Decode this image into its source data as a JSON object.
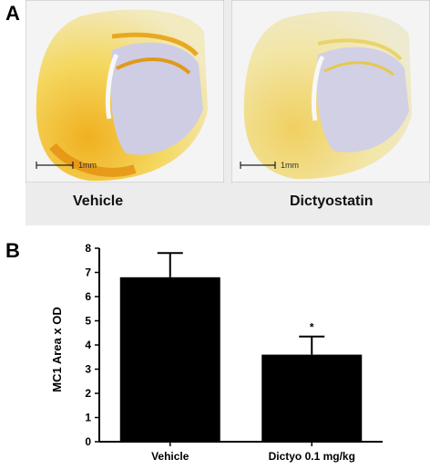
{
  "panel_a": {
    "label": "A",
    "images": [
      {
        "caption": "Vehicle",
        "scale_bar": "1mm"
      },
      {
        "caption": "Dictyostatin",
        "scale_bar": "1mm"
      }
    ]
  },
  "panel_b": {
    "label": "B"
  },
  "chart_data": {
    "type": "bar",
    "categories": [
      "Vehicle",
      "Dictyo 0.1 mg/kg"
    ],
    "values": [
      6.8,
      3.6
    ],
    "errors": [
      1.0,
      0.75
    ],
    "annotations": [
      "",
      "*"
    ],
    "xlabel": "",
    "ylabel": "MC1 Area x OD",
    "ylim": [
      0,
      8
    ],
    "yticks": [
      0,
      1,
      2,
      3,
      4,
      5,
      6,
      7,
      8
    ],
    "colors": {
      "bar": "#000000"
    },
    "grid": false
  }
}
